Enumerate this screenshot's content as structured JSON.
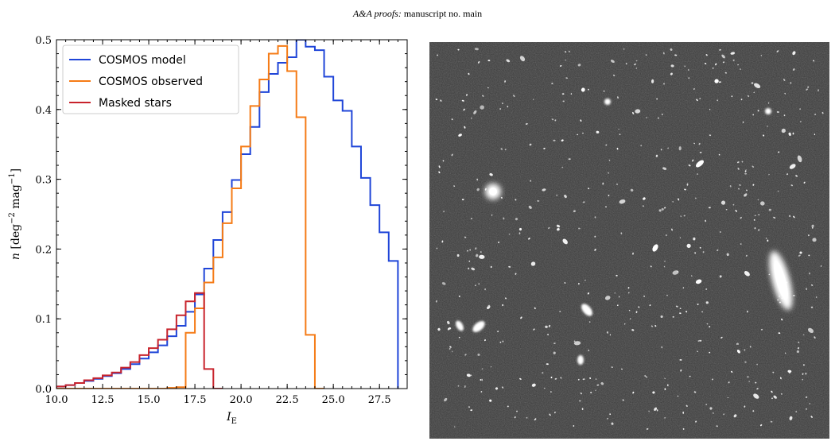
{
  "header": {
    "journal": "A&A proofs:",
    "manuscript": "manuscript no. main"
  },
  "colors": {
    "model": "#1f45d8",
    "observed": "#f57b16",
    "stars": "#c8232c"
  },
  "chart_data": {
    "type": "line",
    "drawstyle": "steps-post",
    "xlabel": "I_E",
    "ylabel": "n [deg^-2 mag^-1]",
    "xlim": [
      10.0,
      29.0
    ],
    "ylim": [
      0.0,
      0.5
    ],
    "xticks": [
      "10.0",
      "12.5",
      "15.0",
      "17.5",
      "20.0",
      "22.5",
      "25.0",
      "27.5"
    ],
    "xtick_values": [
      10.0,
      12.5,
      15.0,
      17.5,
      20.0,
      22.5,
      25.0,
      27.5
    ],
    "yticks": [
      "0.0",
      "0.1",
      "0.2",
      "0.3",
      "0.4",
      "0.5"
    ],
    "ytick_values": [
      0.0,
      0.1,
      0.2,
      0.3,
      0.4,
      0.5
    ],
    "grid": false,
    "legend": "top-left",
    "bin_edges": [
      10.0,
      10.5,
      11.0,
      11.5,
      12.0,
      12.5,
      13.0,
      13.5,
      14.0,
      14.5,
      15.0,
      15.5,
      16.0,
      16.5,
      17.0,
      17.5,
      18.0,
      18.5,
      19.0,
      19.5,
      20.0,
      20.5,
      21.0,
      21.5,
      22.0,
      22.5,
      23.0,
      23.5,
      24.0,
      24.5,
      25.0,
      25.5,
      26.0,
      26.5,
      27.0,
      27.5,
      28.0,
      28.5,
      29.0
    ],
    "series": [
      {
        "name": "COSMOS model",
        "color_key": "model",
        "values": [
          0.003,
          0.005,
          0.008,
          0.011,
          0.014,
          0.018,
          0.022,
          0.028,
          0.035,
          0.043,
          0.052,
          0.062,
          0.075,
          0.09,
          0.11,
          0.135,
          0.172,
          0.213,
          0.253,
          0.299,
          0.336,
          0.375,
          0.425,
          0.451,
          0.467,
          0.475,
          0.5,
          0.49,
          0.485,
          0.447,
          0.413,
          0.398,
          0.347,
          0.302,
          0.263,
          0.224,
          0.183
        ]
      },
      {
        "name": "COSMOS observed",
        "color_key": "observed",
        "values": [
          0,
          0,
          0,
          0,
          0,
          0,
          0,
          0,
          0,
          0,
          0,
          0,
          0.001,
          0.002,
          0.08,
          0.115,
          0.152,
          0.188,
          0.237,
          0.287,
          0.347,
          0.405,
          0.443,
          0.48,
          0.491,
          0.455,
          0.389,
          0.077,
          0
        ]
      },
      {
        "name": "Masked stars",
        "color_key": "stars",
        "values": [
          0.003,
          0.005,
          0.008,
          0.012,
          0.015,
          0.019,
          0.023,
          0.03,
          0.038,
          0.048,
          0.058,
          0.07,
          0.085,
          0.105,
          0.125,
          0.137,
          0.028,
          0
        ]
      }
    ]
  },
  "figure_right": {
    "content": "survey-image"
  }
}
